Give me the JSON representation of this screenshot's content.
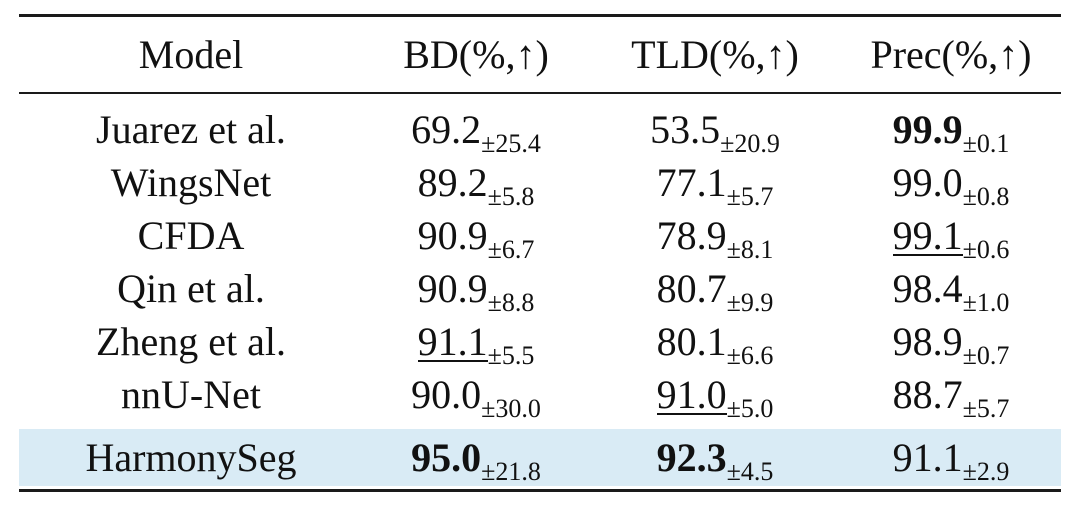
{
  "table": {
    "headers": [
      "Model",
      "BD(%,↑)",
      "TLD(%,↑)",
      "Prec(%,↑)"
    ],
    "rows": [
      {
        "model": "Juarez et al.",
        "bd": "69.2",
        "bd_sd": "±25.4",
        "tld": "53.5",
        "tld_sd": "±20.9",
        "prec": "99.9",
        "prec_sd": "±0.1"
      },
      {
        "model": "WingsNet",
        "bd": "89.2",
        "bd_sd": "±5.8",
        "tld": "77.1",
        "tld_sd": "±5.7",
        "prec": "99.0",
        "prec_sd": "±0.8"
      },
      {
        "model": "CFDA",
        "bd": "90.9",
        "bd_sd": "±6.7",
        "tld": "78.9",
        "tld_sd": "±8.1",
        "prec": "99.1",
        "prec_sd": "±0.6"
      },
      {
        "model": "Qin et al.",
        "bd": "90.9",
        "bd_sd": "±8.8",
        "tld": "80.7",
        "tld_sd": "±9.9",
        "prec": "98.4",
        "prec_sd": "±1.0"
      },
      {
        "model": "Zheng et al.",
        "bd": "91.1",
        "bd_sd": "±5.5",
        "tld": "80.1",
        "tld_sd": "±6.6",
        "prec": "98.9",
        "prec_sd": "±0.7"
      },
      {
        "model": "nnU-Net",
        "bd": "90.0",
        "bd_sd": "±30.0",
        "tld": "91.0",
        "tld_sd": "±5.0",
        "prec": "88.7",
        "prec_sd": "±5.7"
      },
      {
        "model": "HarmonySeg",
        "bd": "95.0",
        "bd_sd": "±21.8",
        "tld": "92.3",
        "tld_sd": "±4.5",
        "prec": "91.1",
        "prec_sd": "±2.9"
      }
    ]
  },
  "colors": {
    "highlight_row": "#d9ebf5",
    "rule": "#1a1a1a"
  }
}
